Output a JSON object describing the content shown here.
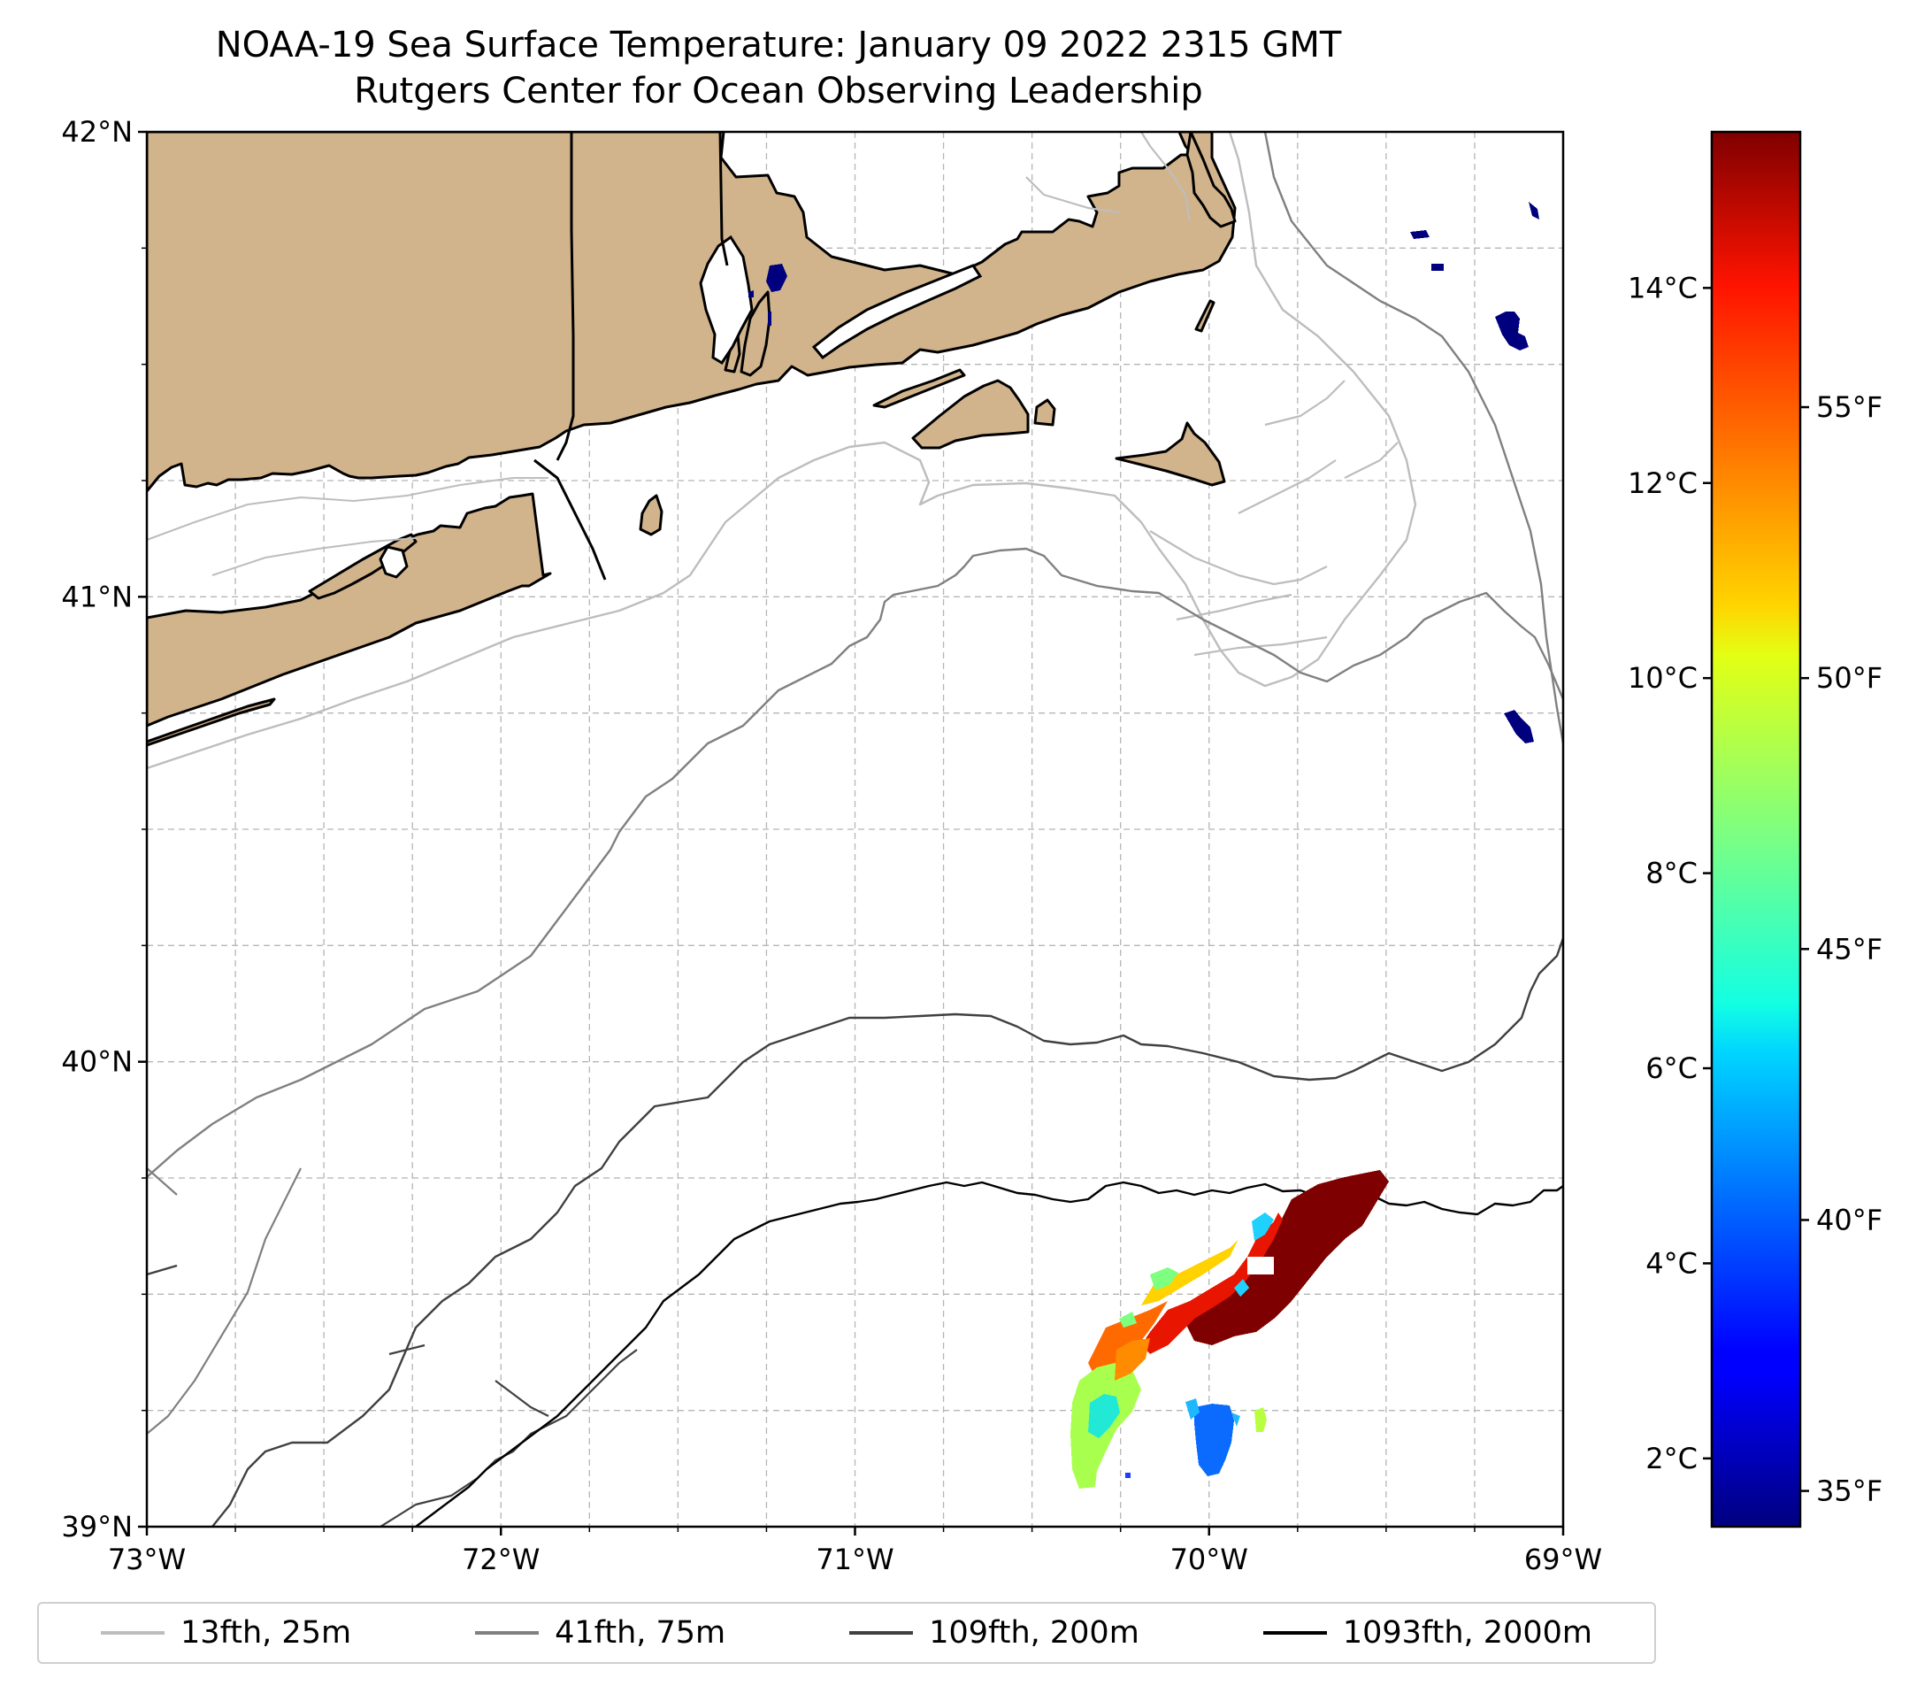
{
  "title_line1": "NOAA-19 Sea Surface Temperature: January 09 2022 2315 GMT",
  "title_line2": "Rutgers Center for Ocean Observing Leadership",
  "map": {
    "lon_range": [
      -73,
      -69
    ],
    "lat_range": [
      39,
      42
    ],
    "x_ticks": [
      {
        "value": -73,
        "label": "73°W"
      },
      {
        "value": -72,
        "label": "72°W"
      },
      {
        "value": -71,
        "label": "71°W"
      },
      {
        "value": -70,
        "label": "70°W"
      },
      {
        "value": -69,
        "label": "69°W"
      }
    ],
    "y_ticks": [
      {
        "value": 42,
        "label": "42°N"
      },
      {
        "value": 41,
        "label": "41°N"
      },
      {
        "value": 40,
        "label": "40°N"
      },
      {
        "value": 39,
        "label": "39°N"
      }
    ],
    "gridlines": true,
    "land_color": "#d2b48c",
    "ocean_color": "#ffffff"
  },
  "colorbar": {
    "colormap": "jet",
    "celsius_ticks": [
      {
        "value": 14,
        "label": "14°C"
      },
      {
        "value": 12,
        "label": "12°C"
      },
      {
        "value": 10,
        "label": "10°C"
      },
      {
        "value": 8,
        "label": "8°C"
      },
      {
        "value": 6,
        "label": "6°C"
      },
      {
        "value": 4,
        "label": "4°C"
      },
      {
        "value": 2,
        "label": "2°C"
      }
    ],
    "fahrenheit_ticks": [
      {
        "value": 55,
        "label": "55°F"
      },
      {
        "value": 50,
        "label": "50°F"
      },
      {
        "value": 45,
        "label": "45°F"
      },
      {
        "value": 40,
        "label": "40°F"
      },
      {
        "value": 35,
        "label": "35°F"
      }
    ],
    "range_celsius": [
      1.3,
      15.6
    ]
  },
  "legend": [
    {
      "label": "13fth, 25m",
      "color": "#bdbdbd"
    },
    {
      "label": "41fth, 75m",
      "color": "#808080"
    },
    {
      "label": "109fth, 200m",
      "color": "#404040"
    },
    {
      "label": "1093fth, 2000m",
      "color": "#000000"
    }
  ],
  "chart_data": {
    "type": "heatmap",
    "title": "NOAA-19 Sea Surface Temperature: January 09 2022 2315 GMT",
    "subtitle": "Rutgers Center for Ocean Observing Leadership",
    "xlabel": "",
    "ylabel": "",
    "x_range": [
      -73,
      -69
    ],
    "y_range": [
      39,
      42
    ],
    "colorbar_units": [
      "°C",
      "°F"
    ],
    "colorbar_range_c": [
      1.3,
      15.6
    ],
    "sst_patches": [
      {
        "name": "warm core",
        "lon": -69.7,
        "lat": 39.55,
        "temp_c": 15.5
      },
      {
        "name": "warm band",
        "lon": -69.9,
        "lat": 39.45,
        "temp_c": 14.0
      },
      {
        "name": "frontal edge",
        "lon": -70.15,
        "lat": 39.38,
        "temp_c": 12.5
      },
      {
        "name": "cool tail",
        "lon": -70.32,
        "lat": 39.18,
        "temp_c": 8.5
      },
      {
        "name": "cold patch",
        "lon": -70.0,
        "lat": 39.17,
        "temp_c": 4.5
      },
      {
        "name": "cold coastal pixels",
        "lon": -69.15,
        "lat": 41.55,
        "temp_c": 1.5
      }
    ],
    "contours": [
      "13fth, 25m",
      "41fth, 75m",
      "109fth, 200m",
      "1093fth, 2000m"
    ]
  }
}
